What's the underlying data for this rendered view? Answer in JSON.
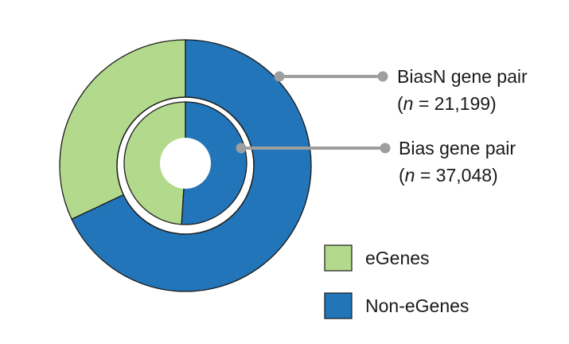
{
  "chart_data": {
    "type": "pie",
    "legend": [
      {
        "label": "eGenes",
        "color": "#b3d98c"
      },
      {
        "label": "Non-eGenes",
        "color": "#2275b8"
      }
    ],
    "rings": [
      {
        "ring": "outer",
        "name": "BiasN gene pair",
        "n_prefix": "n",
        "n_value": "= 21,199",
        "slices": [
          {
            "category": "eGenes",
            "fraction": 0.32
          },
          {
            "category": "Non-eGenes",
            "fraction": 0.68
          }
        ]
      },
      {
        "ring": "inner",
        "name": "Bias gene pair",
        "n_prefix": "n",
        "n_value": "= 37,048",
        "slices": [
          {
            "category": "eGenes",
            "fraction": 0.49
          },
          {
            "category": "Non-eGenes",
            "fraction": 0.51
          }
        ]
      }
    ],
    "legend_position": "bottom-right"
  },
  "colors": {
    "egenes": "#b3d98c",
    "non_egenes": "#2275b8",
    "outline": "#1a1a1a",
    "leader": "#9e9e9e"
  }
}
